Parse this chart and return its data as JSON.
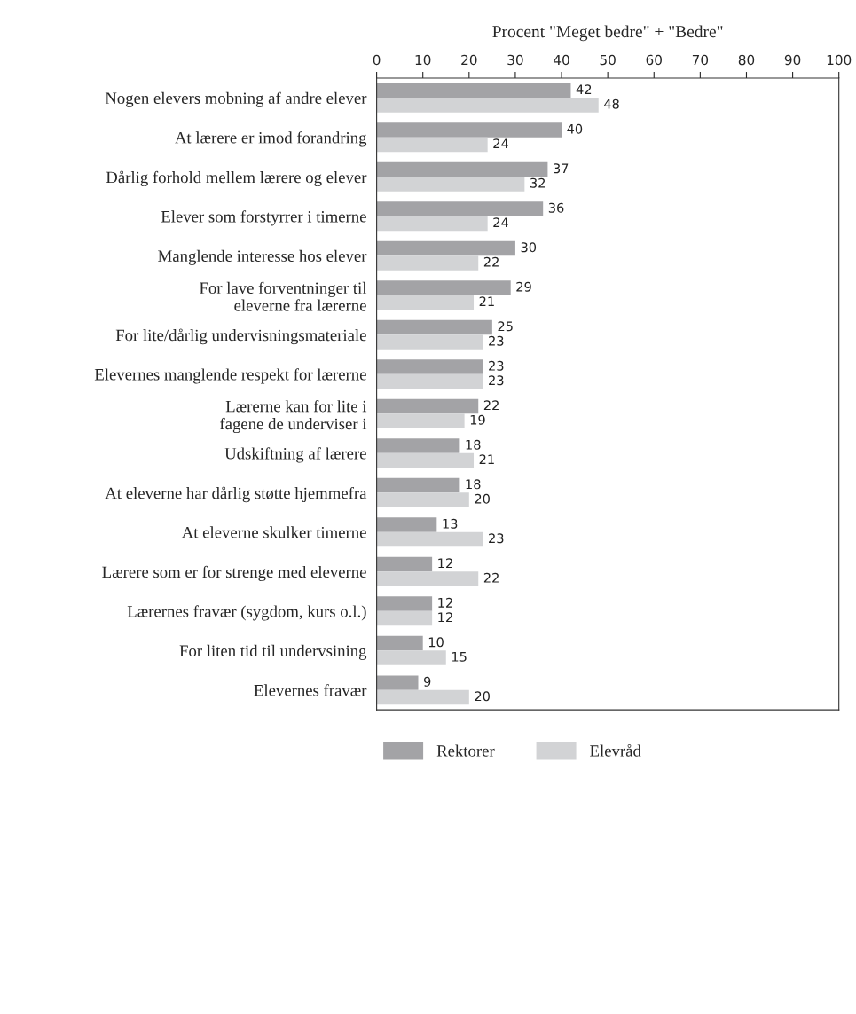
{
  "chart_data": {
    "type": "bar",
    "orientation": "horizontal",
    "xlabel": "Procent \"Meget bedre\" + \"Bedre\"",
    "categories": [
      "Nogen elevers mobning af andre elever",
      "At lærere er imod forandring",
      "Dårlig forhold mellem lærere og elever",
      "Elever som forstyrrer i timerne",
      "Manglende interesse hos elever",
      "For lave forventninger til\neleverne fra lærerne",
      "For lite/dårlig undervisningsmateriale",
      "Elevernes manglende respekt for lærerne",
      "Lærerne kan for lite i\nfagene de underviser i",
      "Udskiftning af lærere",
      "At eleverne har dårlig støtte hjemmefra",
      "At eleverne skulker timerne",
      "Lærere som er for strenge med eleverne",
      "Lærernes fravær (sygdom, kurs o.l.)",
      "For liten tid til undervsining",
      "Elevernes fravær"
    ],
    "series": [
      {
        "name": "Rektorer",
        "color": "#a3a3a6",
        "values": [
          42,
          40,
          37,
          36,
          30,
          29,
          25,
          23,
          22,
          18,
          18,
          13,
          12,
          12,
          10,
          9
        ]
      },
      {
        "name": "Elevråd",
        "color": "#d2d3d5",
        "values": [
          48,
          24,
          32,
          24,
          22,
          21,
          23,
          23,
          19,
          21,
          20,
          23,
          22,
          12,
          15,
          20
        ]
      }
    ],
    "xlim": [
      0,
      100
    ],
    "xticks": [
      0,
      10,
      20,
      30,
      40,
      50,
      60,
      70,
      80,
      90,
      100
    ],
    "data_labels": true,
    "legend": "bottom",
    "grid": false
  }
}
